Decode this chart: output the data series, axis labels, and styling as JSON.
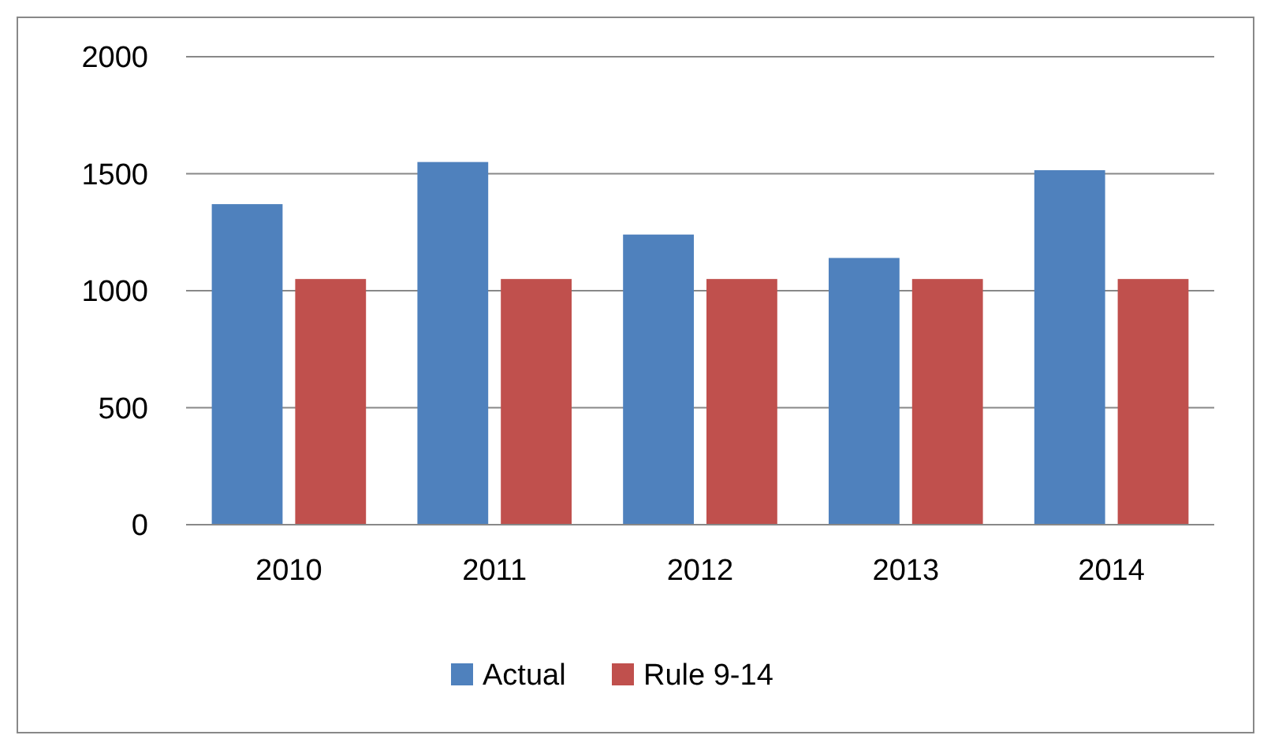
{
  "chart_data": {
    "type": "bar",
    "categories": [
      "2010",
      "2011",
      "2012",
      "2013",
      "2014"
    ],
    "series": [
      {
        "name": "Actual",
        "color": "#4f81bd",
        "values": [
          1370,
          1550,
          1240,
          1140,
          1515
        ]
      },
      {
        "name": "Rule 9-14",
        "color": "#c0504d",
        "values": [
          1050,
          1050,
          1050,
          1050,
          1050
        ]
      }
    ],
    "ylim": [
      0,
      2000
    ],
    "yticks": [
      0,
      500,
      1000,
      1500,
      2000
    ],
    "grid": "y",
    "legend": "bottom"
  }
}
